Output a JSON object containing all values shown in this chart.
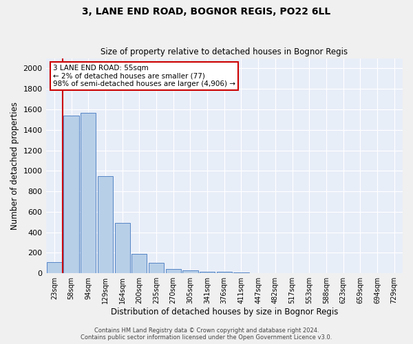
{
  "title": "3, LANE END ROAD, BOGNOR REGIS, PO22 6LL",
  "subtitle": "Size of property relative to detached houses in Bognor Regis",
  "xlabel": "Distribution of detached houses by size in Bognor Regis",
  "ylabel": "Number of detached properties",
  "bar_labels": [
    "23sqm",
    "58sqm",
    "94sqm",
    "129sqm",
    "164sqm",
    "200sqm",
    "235sqm",
    "270sqm",
    "305sqm",
    "341sqm",
    "376sqm",
    "411sqm",
    "447sqm",
    "482sqm",
    "517sqm",
    "553sqm",
    "588sqm",
    "623sqm",
    "659sqm",
    "694sqm",
    "729sqm"
  ],
  "bar_values": [
    110,
    1540,
    1565,
    950,
    490,
    190,
    100,
    45,
    25,
    18,
    15,
    10,
    0,
    0,
    0,
    0,
    0,
    0,
    0,
    0,
    0
  ],
  "bar_color": "#b8cfe8",
  "bar_edge_color": "#5585c5",
  "vline_color": "#cc0000",
  "ylim": [
    0,
    2100
  ],
  "yticks": [
    0,
    200,
    400,
    600,
    800,
    1000,
    1200,
    1400,
    1600,
    1800,
    2000
  ],
  "annotation_text": "3 LANE END ROAD: 55sqm\n← 2% of detached houses are smaller (77)\n98% of semi-detached houses are larger (4,906) →",
  "annotation_box_color": "#ffffff",
  "annotation_box_edge": "#cc0000",
  "plot_bg_color": "#e8eef8",
  "fig_bg_color": "#f0f0f0",
  "grid_color": "#ffffff",
  "footer_line1": "Contains HM Land Registry data © Crown copyright and database right 2024.",
  "footer_line2": "Contains public sector information licensed under the Open Government Licence v3.0."
}
